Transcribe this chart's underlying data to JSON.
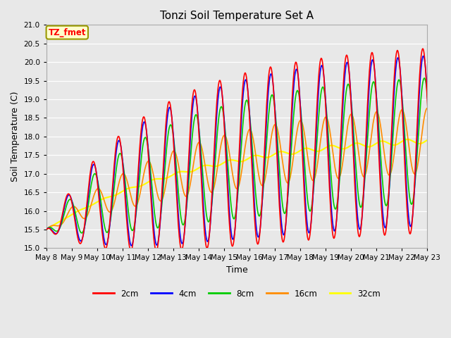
{
  "title": "Tonzi Soil Temperature Set A",
  "xlabel": "Time",
  "ylabel": "Soil Temperature (C)",
  "ylim": [
    15.0,
    21.0
  ],
  "yticks": [
    15.0,
    15.5,
    16.0,
    16.5,
    17.0,
    17.5,
    18.0,
    18.5,
    19.0,
    19.5,
    20.0,
    20.5,
    21.0
  ],
  "colors": {
    "2cm": "#FF0000",
    "4cm": "#0000FF",
    "8cm": "#00CC00",
    "16cm": "#FF8C00",
    "32cm": "#FFFF00"
  },
  "annotation_text": "TZ_fmet",
  "annotation_color": "#FF0000",
  "annotation_bg": "#FFFFCC",
  "annotation_border": "#999900",
  "bg_color": "#E8E8E8",
  "figsize": [
    6.4,
    4.8
  ],
  "dpi": 100
}
